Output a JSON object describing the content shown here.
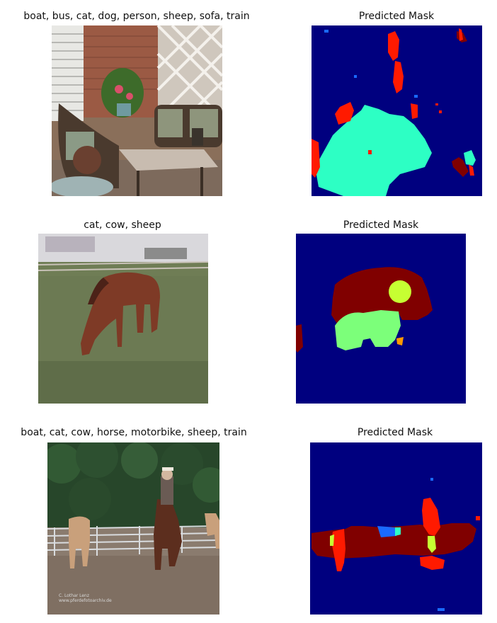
{
  "rows": [
    {
      "photo_title": "boat, bus, cat, dog, person, sheep, sofa, train",
      "mask_title": "Predicted Mask"
    },
    {
      "photo_title": "cat, cow, sheep",
      "mask_title": "Predicted Mask"
    },
    {
      "photo_title": "boat, cat, cow, horse, motorbike, sheep, train",
      "mask_title": "Predicted Mask",
      "watermark": [
        "C. Lothar Lenz",
        "www.pferdefotoarchiv.de"
      ]
    }
  ],
  "colors": {
    "mask_background": "#00007f",
    "mask_red": "#ff1a00",
    "mask_darkred": "#800000",
    "mask_cyan": "#2dffc4",
    "mask_green": "#7cff7a",
    "mask_yellow": "#c6ff32",
    "mask_blue": "#1a6aff"
  }
}
